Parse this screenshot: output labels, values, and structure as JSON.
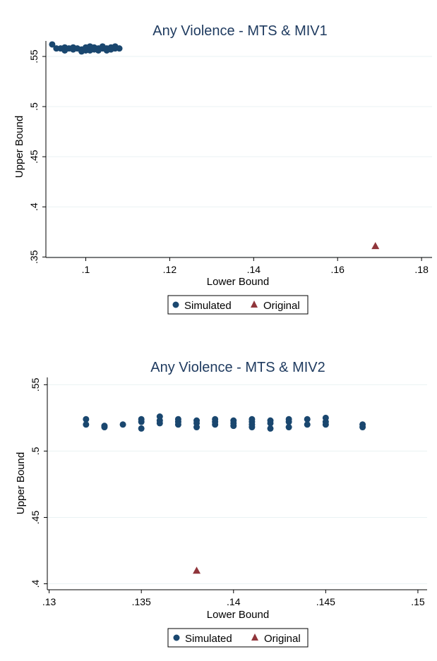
{
  "chart_data": [
    {
      "type": "scatter",
      "title": "Any Violence - MTS & MIV1",
      "xlabel": "Lower Bound",
      "ylabel": "Upper Bound",
      "xlim": [
        0.0905,
        0.1825
      ],
      "ylim": [
        0.3495,
        0.5655
      ],
      "xticks": [
        0.1,
        0.12,
        0.14,
        0.16,
        0.18
      ],
      "xtick_labels": [
        ".1",
        ".12",
        ".14",
        ".16",
        ".18"
      ],
      "yticks": [
        0.35,
        0.4,
        0.45,
        0.5,
        0.55
      ],
      "ytick_labels": [
        ".35",
        ".4",
        ".45",
        ".5",
        ".55"
      ],
      "grid": "horizontal",
      "legend_position": "bottom",
      "series": [
        {
          "name": "Simulated",
          "marker": "circle",
          "color": "#1a476f",
          "points": [
            [
              0.092,
              0.562
            ],
            [
              0.093,
              0.558
            ],
            [
              0.094,
              0.558
            ],
            [
              0.095,
              0.559
            ],
            [
              0.095,
              0.556
            ],
            [
              0.096,
              0.558
            ],
            [
              0.097,
              0.557
            ],
            [
              0.097,
              0.559
            ],
            [
              0.098,
              0.558
            ],
            [
              0.099,
              0.557
            ],
            [
              0.099,
              0.555
            ],
            [
              0.1,
              0.558
            ],
            [
              0.1,
              0.556
            ],
            [
              0.1,
              0.559
            ],
            [
              0.101,
              0.556
            ],
            [
              0.101,
              0.558
            ],
            [
              0.101,
              0.56
            ],
            [
              0.102,
              0.557
            ],
            [
              0.102,
              0.559
            ],
            [
              0.103,
              0.558
            ],
            [
              0.103,
              0.556
            ],
            [
              0.104,
              0.558
            ],
            [
              0.104,
              0.56
            ],
            [
              0.105,
              0.556
            ],
            [
              0.105,
              0.558
            ],
            [
              0.106,
              0.559
            ],
            [
              0.106,
              0.557
            ],
            [
              0.107,
              0.56
            ],
            [
              0.107,
              0.558
            ],
            [
              0.108,
              0.558
            ]
          ]
        },
        {
          "name": "Original",
          "marker": "triangle",
          "color": "#90353b",
          "points": [
            [
              0.169,
              0.361
            ]
          ]
        }
      ]
    },
    {
      "type": "scatter",
      "title": "Any Violence - MTS & MIV2",
      "xlabel": "Lower Bound",
      "ylabel": "Upper Bound",
      "xlim": [
        0.1299,
        0.1505
      ],
      "ylim": [
        0.3955,
        0.5555
      ],
      "xticks": [
        0.13,
        0.135,
        0.14,
        0.145,
        0.15
      ],
      "xtick_labels": [
        ".13",
        ".135",
        ".14",
        ".145",
        ".15"
      ],
      "yticks": [
        0.4,
        0.45,
        0.5,
        0.55
      ],
      "ytick_labels": [
        ".4",
        ".45",
        ".5",
        ".55"
      ],
      "grid": "horizontal",
      "legend_position": "bottom",
      "series": [
        {
          "name": "Simulated",
          "marker": "circle",
          "color": "#1a476f",
          "points": [
            [
              0.132,
              0.524
            ],
            [
              0.132,
              0.52
            ],
            [
              0.133,
              0.519
            ],
            [
              0.133,
              0.518
            ],
            [
              0.134,
              0.52
            ],
            [
              0.135,
              0.524
            ],
            [
              0.135,
              0.522
            ],
            [
              0.135,
              0.517
            ],
            [
              0.136,
              0.526
            ],
            [
              0.136,
              0.523
            ],
            [
              0.136,
              0.521
            ],
            [
              0.137,
              0.524
            ],
            [
              0.137,
              0.522
            ],
            [
              0.137,
              0.52
            ],
            [
              0.138,
              0.523
            ],
            [
              0.138,
              0.521
            ],
            [
              0.138,
              0.518
            ],
            [
              0.139,
              0.524
            ],
            [
              0.139,
              0.522
            ],
            [
              0.139,
              0.52
            ],
            [
              0.14,
              0.523
            ],
            [
              0.14,
              0.521
            ],
            [
              0.14,
              0.519
            ],
            [
              0.141,
              0.524
            ],
            [
              0.141,
              0.522
            ],
            [
              0.141,
              0.52
            ],
            [
              0.141,
              0.518
            ],
            [
              0.142,
              0.523
            ],
            [
              0.142,
              0.521
            ],
            [
              0.142,
              0.517
            ],
            [
              0.143,
              0.524
            ],
            [
              0.143,
              0.522
            ],
            [
              0.143,
              0.518
            ],
            [
              0.144,
              0.524
            ],
            [
              0.144,
              0.52
            ],
            [
              0.145,
              0.525
            ],
            [
              0.145,
              0.522
            ],
            [
              0.145,
              0.52
            ],
            [
              0.147,
              0.52
            ],
            [
              0.147,
              0.518
            ]
          ]
        },
        {
          "name": "Original",
          "marker": "triangle",
          "color": "#90353b",
          "points": [
            [
              0.138,
              0.41
            ]
          ]
        }
      ]
    }
  ]
}
